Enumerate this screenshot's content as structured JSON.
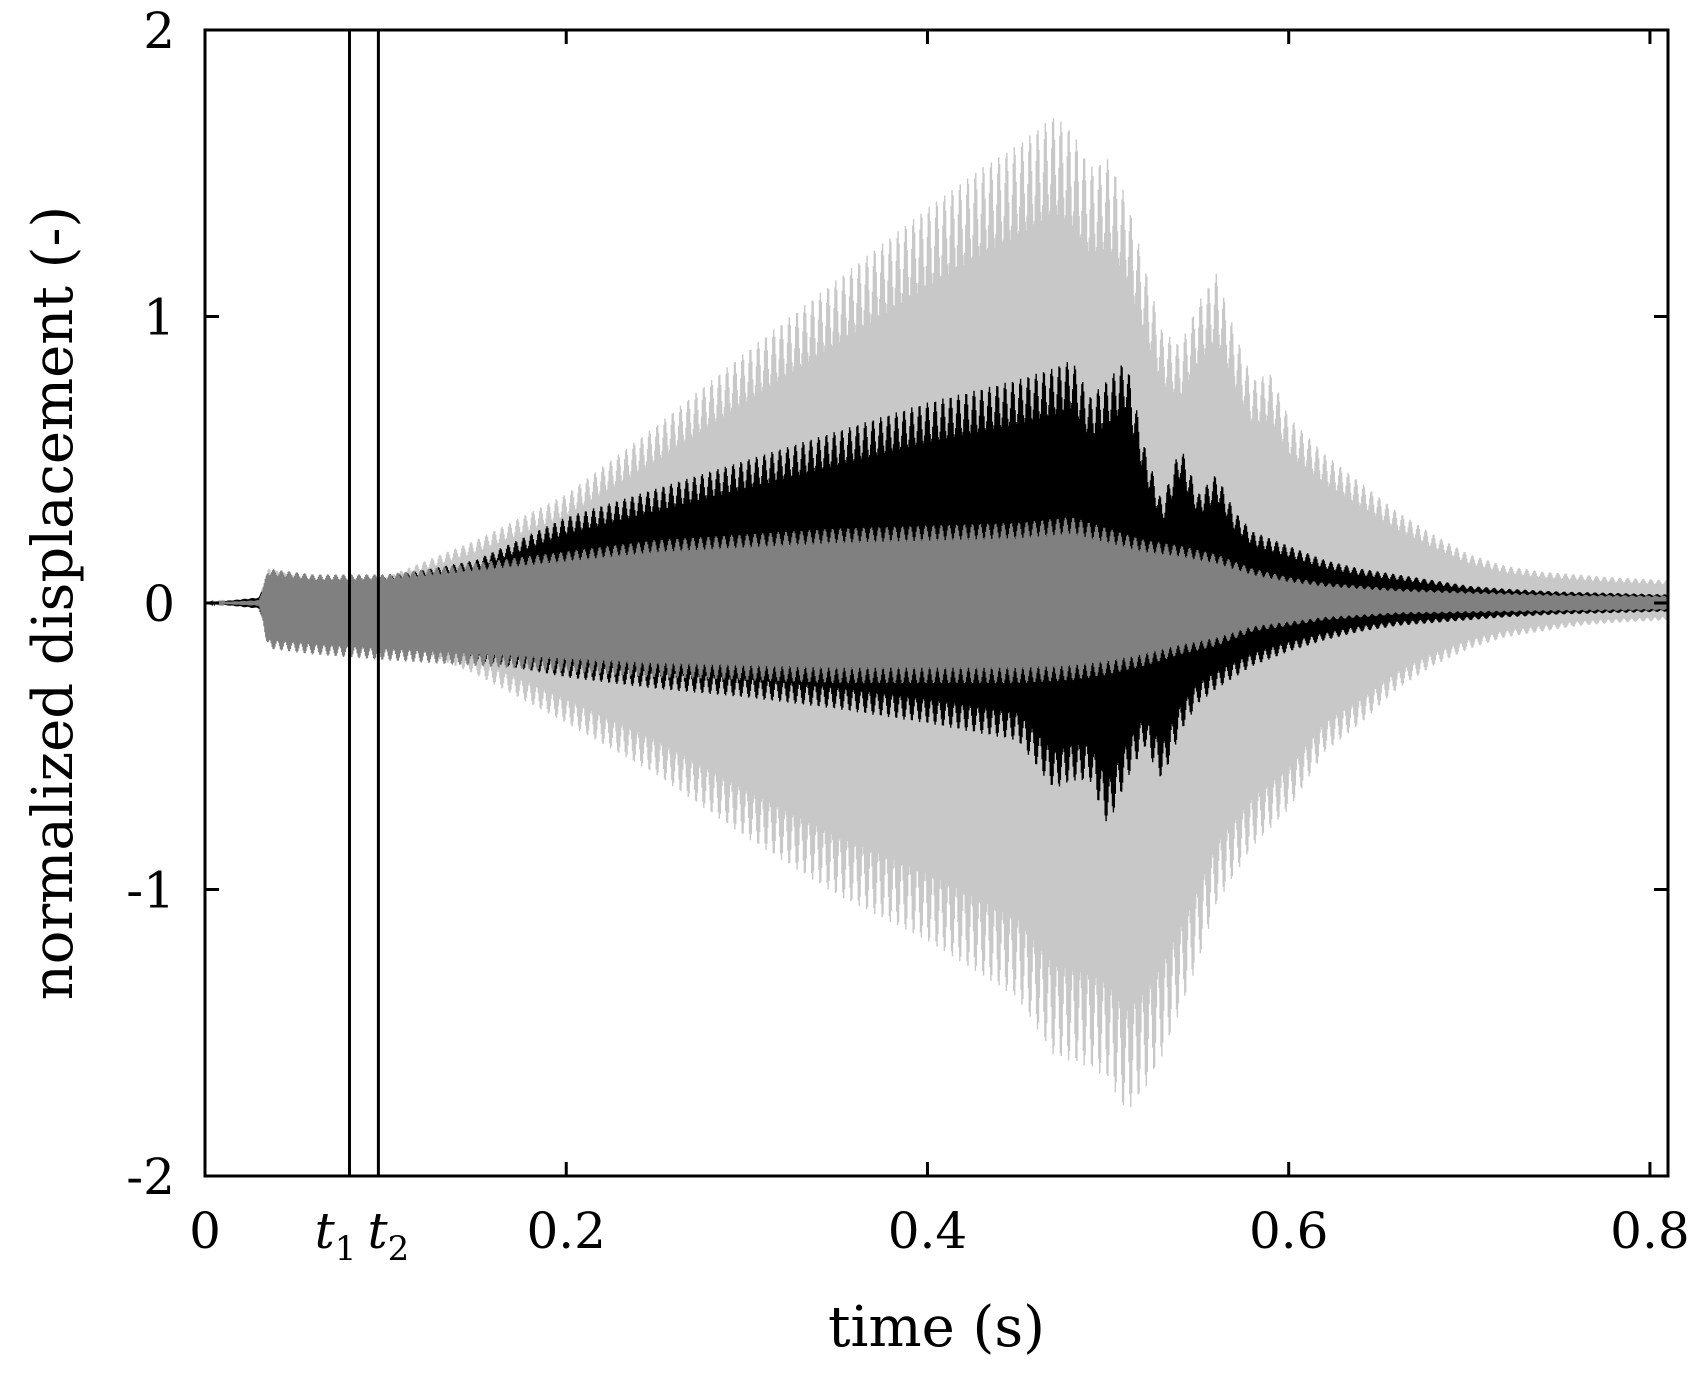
{
  "chart_data": {
    "type": "line",
    "title": "",
    "xlabel": "time (s)",
    "ylabel": "normalized displacement (-)",
    "xlim": [
      0,
      0.81
    ],
    "ylim": [
      -2,
      2
    ],
    "grid": false,
    "xticks": [
      {
        "value": 0,
        "label": "0"
      },
      {
        "value": 0.2,
        "label": "0.2"
      },
      {
        "value": 0.4,
        "label": "0.4"
      },
      {
        "value": 0.6,
        "label": "0.6"
      },
      {
        "value": 0.8,
        "label": "0.8"
      }
    ],
    "yticks": [
      {
        "value": 2,
        "label": "2"
      },
      {
        "value": 1,
        "label": "1"
      },
      {
        "value": 0,
        "label": "0"
      },
      {
        "value": -1,
        "label": "-1"
      },
      {
        "value": -2,
        "label": "-2"
      }
    ],
    "markers": [
      {
        "x": 0.08,
        "label": "t",
        "sub": "1"
      },
      {
        "x": 0.096,
        "label": "t",
        "sub": "2"
      }
    ],
    "series": [
      {
        "color": "#c8c8c8",
        "envelope_upper": [
          [
            0,
            0
          ],
          [
            0.03,
            0.02
          ],
          [
            0.035,
            0.12
          ],
          [
            0.06,
            0.08
          ],
          [
            0.1,
            0.09
          ],
          [
            0.15,
            0.22
          ],
          [
            0.2,
            0.38
          ],
          [
            0.25,
            0.62
          ],
          [
            0.3,
            0.88
          ],
          [
            0.35,
            1.13
          ],
          [
            0.4,
            1.38
          ],
          [
            0.43,
            1.52
          ],
          [
            0.45,
            1.6
          ],
          [
            0.47,
            1.7
          ],
          [
            0.48,
            1.65
          ],
          [
            0.49,
            1.52
          ],
          [
            0.5,
            1.55
          ],
          [
            0.51,
            1.42
          ],
          [
            0.52,
            1.18
          ],
          [
            0.53,
            0.95
          ],
          [
            0.54,
            0.9
          ],
          [
            0.55,
            1.05
          ],
          [
            0.56,
            1.15
          ],
          [
            0.57,
            0.95
          ],
          [
            0.58,
            0.78
          ],
          [
            0.59,
            0.8
          ],
          [
            0.6,
            0.65
          ],
          [
            0.62,
            0.52
          ],
          [
            0.64,
            0.42
          ],
          [
            0.66,
            0.32
          ],
          [
            0.68,
            0.24
          ],
          [
            0.7,
            0.17
          ],
          [
            0.72,
            0.13
          ],
          [
            0.74,
            0.11
          ],
          [
            0.76,
            0.1
          ],
          [
            0.78,
            0.09
          ],
          [
            0.81,
            0.08
          ]
        ],
        "envelope_lower": [
          [
            0,
            0
          ],
          [
            0.03,
            -0.02
          ],
          [
            0.035,
            -0.12
          ],
          [
            0.06,
            -0.1
          ],
          [
            0.1,
            -0.12
          ],
          [
            0.15,
            -0.25
          ],
          [
            0.2,
            -0.42
          ],
          [
            0.25,
            -0.6
          ],
          [
            0.3,
            -0.82
          ],
          [
            0.35,
            -1.02
          ],
          [
            0.4,
            -1.18
          ],
          [
            0.45,
            -1.38
          ],
          [
            0.47,
            -1.58
          ],
          [
            0.48,
            -1.6
          ],
          [
            0.49,
            -1.62
          ],
          [
            0.5,
            -1.66
          ],
          [
            0.51,
            -1.78
          ],
          [
            0.52,
            -1.7
          ],
          [
            0.53,
            -1.58
          ],
          [
            0.54,
            -1.42
          ],
          [
            0.55,
            -1.25
          ],
          [
            0.56,
            -1.05
          ],
          [
            0.57,
            -0.95
          ],
          [
            0.58,
            -0.85
          ],
          [
            0.6,
            -0.72
          ],
          [
            0.62,
            -0.52
          ],
          [
            0.64,
            -0.42
          ],
          [
            0.66,
            -0.3
          ],
          [
            0.68,
            -0.22
          ],
          [
            0.7,
            -0.16
          ],
          [
            0.72,
            -0.12
          ],
          [
            0.74,
            -0.1
          ],
          [
            0.76,
            -0.08
          ],
          [
            0.78,
            -0.07
          ],
          [
            0.81,
            -0.06
          ]
        ]
      },
      {
        "color": "#000000",
        "envelope_upper": [
          [
            0,
            0
          ],
          [
            0.03,
            0.02
          ],
          [
            0.035,
            0.1
          ],
          [
            0.06,
            0.08
          ],
          [
            0.1,
            0.09
          ],
          [
            0.15,
            0.15
          ],
          [
            0.2,
            0.3
          ],
          [
            0.25,
            0.4
          ],
          [
            0.3,
            0.5
          ],
          [
            0.35,
            0.6
          ],
          [
            0.4,
            0.7
          ],
          [
            0.45,
            0.78
          ],
          [
            0.47,
            0.82
          ],
          [
            0.48,
            0.85
          ],
          [
            0.49,
            0.72
          ],
          [
            0.5,
            0.78
          ],
          [
            0.51,
            0.85
          ],
          [
            0.52,
            0.55
          ],
          [
            0.53,
            0.35
          ],
          [
            0.54,
            0.55
          ],
          [
            0.55,
            0.38
          ],
          [
            0.56,
            0.45
          ],
          [
            0.57,
            0.32
          ],
          [
            0.58,
            0.25
          ],
          [
            0.6,
            0.2
          ],
          [
            0.62,
            0.15
          ],
          [
            0.64,
            0.12
          ],
          [
            0.66,
            0.1
          ],
          [
            0.68,
            0.08
          ],
          [
            0.7,
            0.06
          ],
          [
            0.72,
            0.05
          ],
          [
            0.75,
            0.04
          ],
          [
            0.78,
            0.035
          ],
          [
            0.81,
            0.03
          ]
        ],
        "envelope_lower": [
          [
            0,
            0
          ],
          [
            0.03,
            -0.02
          ],
          [
            0.035,
            -0.12
          ],
          [
            0.06,
            -0.1
          ],
          [
            0.1,
            -0.12
          ],
          [
            0.15,
            -0.2
          ],
          [
            0.2,
            -0.26
          ],
          [
            0.25,
            -0.3
          ],
          [
            0.3,
            -0.33
          ],
          [
            0.35,
            -0.37
          ],
          [
            0.4,
            -0.42
          ],
          [
            0.45,
            -0.48
          ],
          [
            0.47,
            -0.65
          ],
          [
            0.48,
            -0.62
          ],
          [
            0.49,
            -0.62
          ],
          [
            0.5,
            -0.78
          ],
          [
            0.51,
            -0.62
          ],
          [
            0.52,
            -0.5
          ],
          [
            0.53,
            -0.62
          ],
          [
            0.54,
            -0.45
          ],
          [
            0.55,
            -0.35
          ],
          [
            0.56,
            -0.3
          ],
          [
            0.58,
            -0.22
          ],
          [
            0.6,
            -0.17
          ],
          [
            0.62,
            -0.13
          ],
          [
            0.64,
            -0.1
          ],
          [
            0.66,
            -0.08
          ],
          [
            0.68,
            -0.07
          ],
          [
            0.7,
            -0.06
          ],
          [
            0.72,
            -0.05
          ],
          [
            0.75,
            -0.04
          ],
          [
            0.78,
            -0.035
          ],
          [
            0.81,
            -0.03
          ]
        ]
      },
      {
        "color": "#808080",
        "envelope_upper": [
          [
            0,
            0
          ],
          [
            0.03,
            0.01
          ],
          [
            0.035,
            0.12
          ],
          [
            0.06,
            0.1
          ],
          [
            0.1,
            0.1
          ],
          [
            0.15,
            0.14
          ],
          [
            0.2,
            0.18
          ],
          [
            0.25,
            0.22
          ],
          [
            0.3,
            0.24
          ],
          [
            0.35,
            0.26
          ],
          [
            0.4,
            0.27
          ],
          [
            0.45,
            0.28
          ],
          [
            0.48,
            0.3
          ],
          [
            0.5,
            0.26
          ],
          [
            0.52,
            0.22
          ],
          [
            0.54,
            0.2
          ],
          [
            0.56,
            0.17
          ],
          [
            0.58,
            0.12
          ],
          [
            0.6,
            0.09
          ],
          [
            0.62,
            0.07
          ],
          [
            0.64,
            0.06
          ],
          [
            0.66,
            0.05
          ],
          [
            0.7,
            0.04
          ],
          [
            0.75,
            0.03
          ],
          [
            0.81,
            0.025
          ]
        ],
        "envelope_lower": [
          [
            0,
            0
          ],
          [
            0.03,
            -0.01
          ],
          [
            0.035,
            -0.16
          ],
          [
            0.06,
            -0.18
          ],
          [
            0.1,
            -0.2
          ],
          [
            0.15,
            -0.22
          ],
          [
            0.2,
            -0.24
          ],
          [
            0.25,
            -0.26
          ],
          [
            0.3,
            -0.27
          ],
          [
            0.35,
            -0.28
          ],
          [
            0.4,
            -0.28
          ],
          [
            0.45,
            -0.28
          ],
          [
            0.48,
            -0.27
          ],
          [
            0.5,
            -0.25
          ],
          [
            0.52,
            -0.22
          ],
          [
            0.54,
            -0.18
          ],
          [
            0.56,
            -0.15
          ],
          [
            0.58,
            -0.1
          ],
          [
            0.6,
            -0.08
          ],
          [
            0.62,
            -0.06
          ],
          [
            0.64,
            -0.05
          ],
          [
            0.66,
            -0.04
          ],
          [
            0.7,
            -0.035
          ],
          [
            0.75,
            -0.03
          ],
          [
            0.81,
            -0.025
          ]
        ]
      }
    ]
  }
}
